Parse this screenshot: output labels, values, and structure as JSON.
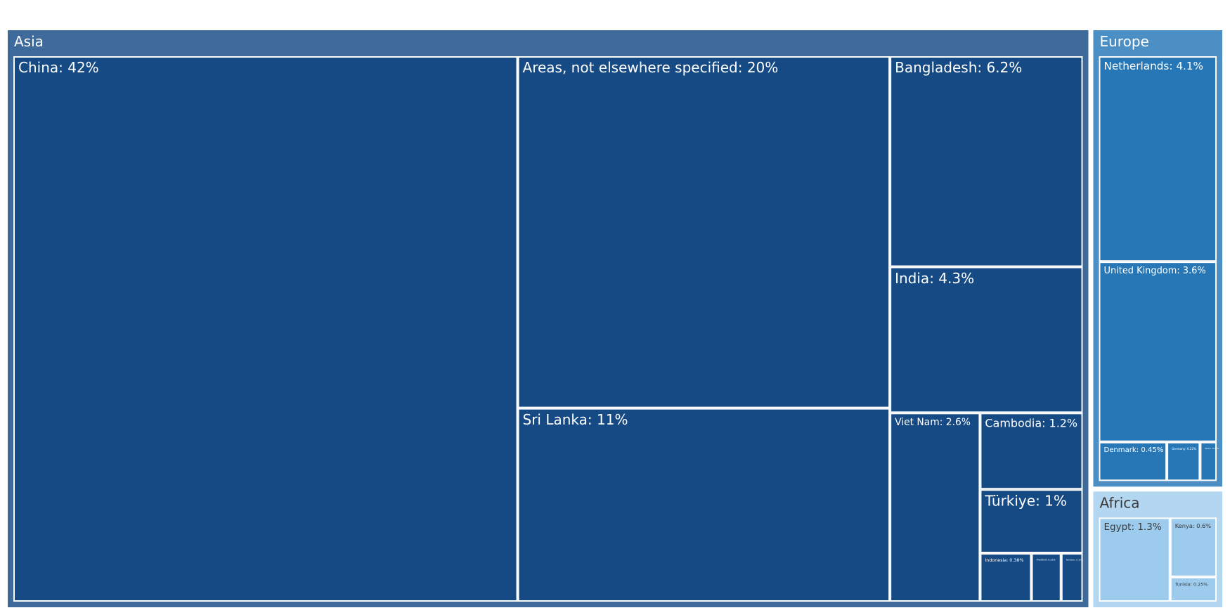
{
  "chart_data": {
    "type": "treemap",
    "title": "",
    "unit": "%",
    "groups": [
      {
        "name": "Asia",
        "color": "#3f6a9c",
        "leaf_color": "#164a84",
        "text_color": "#ffffff",
        "items": [
          {
            "name": "China",
            "label": "China: 42%",
            "value": 42
          },
          {
            "name": "Areas, not elsewhere specified",
            "label": "Areas, not elsewhere specified: 20%",
            "value": 20
          },
          {
            "name": "Sri Lanka",
            "label": "Sri Lanka: 11%",
            "value": 11
          },
          {
            "name": "Bangladesh",
            "label": "Bangladesh: 6.2%",
            "value": 6.2
          },
          {
            "name": "India",
            "label": "India: 4.3%",
            "value": 4.3
          },
          {
            "name": "Viet Nam",
            "label": "Viet Nam: 2.6%",
            "value": 2.6
          },
          {
            "name": "Cambodia",
            "label": "Cambodia: 1.2%",
            "value": 1.2
          },
          {
            "name": "Türkiye",
            "label": "Türkiye: 1%",
            "value": 1
          },
          {
            "name": "Indonesia",
            "label": "Indonesia: 0.38%",
            "value": 0.38
          },
          {
            "name": "Thailand",
            "label": "Thailand: 0.22%",
            "value": 0.22
          },
          {
            "name": "Pakistan",
            "label": "Pakistan: 0.16%",
            "value": 0.16
          }
        ]
      },
      {
        "name": "Europe",
        "color": "#4b8fc4",
        "leaf_color": "#2777b7",
        "text_color": "#ffffff",
        "items": [
          {
            "name": "Netherlands",
            "label": "Netherlands: 4.1%",
            "value": 4.1
          },
          {
            "name": "United Kingdom",
            "label": "United Kingdom: 3.6%",
            "value": 3.6
          },
          {
            "name": "Denmark",
            "label": "Denmark: 0.45%",
            "value": 0.45
          },
          {
            "name": "Germany",
            "label": "Germany: 0.22%",
            "value": 0.22
          },
          {
            "name": "Spain",
            "label": "Spain: 0.11%",
            "value": 0.11
          }
        ]
      },
      {
        "name": "Africa",
        "color": "#b3d6f1",
        "leaf_color": "#9ccbee",
        "text_color": "#3a3a3a",
        "items": [
          {
            "name": "Egypt",
            "label": "Egypt: 1.3%",
            "value": 1.3
          },
          {
            "name": "Kenya",
            "label": "Kenya: 0.6%",
            "value": 0.6
          },
          {
            "name": "Tunisia",
            "label": "Tunisia: 0.25%",
            "value": 0.25
          }
        ]
      }
    ]
  }
}
